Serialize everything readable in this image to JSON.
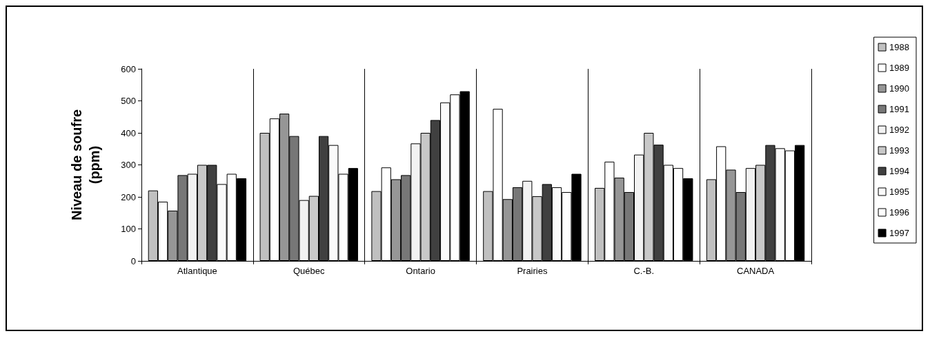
{
  "chart_data": {
    "type": "bar",
    "ylabel": "Niveau de soufre\n(ppm)",
    "categories": [
      "Atlantique",
      "Québec",
      "Ontario",
      "Prairies",
      "C.-B.",
      "CANADA"
    ],
    "series": [
      {
        "name": "1988",
        "color": "#c0c0c0",
        "values": [
          220,
          400,
          218,
          218,
          228,
          255
        ]
      },
      {
        "name": "1989",
        "color": "#ffffff",
        "values": [
          185,
          445,
          292,
          475,
          310,
          358
        ]
      },
      {
        "name": "1990",
        "color": "#969696",
        "values": [
          157,
          460,
          255,
          193,
          260,
          285
        ]
      },
      {
        "name": "1991",
        "color": "#777777",
        "values": [
          268,
          390,
          268,
          230,
          215,
          215
        ]
      },
      {
        "name": "1992",
        "color": "#f2f2f2",
        "values": [
          272,
          190,
          367,
          250,
          332,
          290
        ]
      },
      {
        "name": "1993",
        "color": "#c8c8c8",
        "values": [
          300,
          203,
          400,
          202,
          400,
          300
        ]
      },
      {
        "name": "1994",
        "color": "#404040",
        "values": [
          300,
          390,
          440,
          240,
          363,
          362
        ]
      },
      {
        "name": "1995",
        "color": "#fafafa",
        "values": [
          240,
          362,
          495,
          230,
          300,
          352
        ]
      },
      {
        "name": "1996",
        "color": "#fefefe",
        "values": [
          272,
          272,
          520,
          215,
          290,
          345
        ]
      },
      {
        "name": "1997",
        "color": "#000000",
        "values": [
          258,
          290,
          530,
          272,
          258,
          362
        ]
      }
    ],
    "ylim": [
      0,
      600
    ],
    "yticks": [
      0,
      100,
      200,
      300,
      400,
      500,
      600
    ],
    "grid": "x",
    "legend": "right"
  }
}
